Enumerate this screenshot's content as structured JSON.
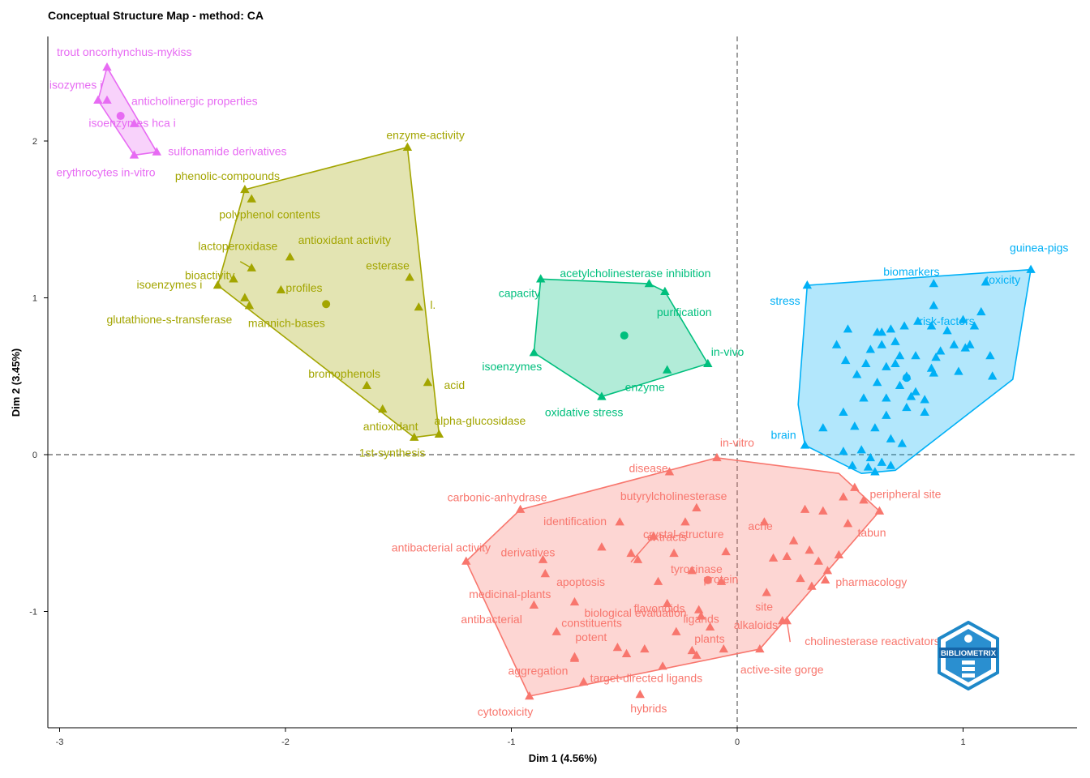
{
  "chart_data": {
    "type": "scatter",
    "title": "Conceptual Structure Map - method: CA",
    "xlabel": "Dim 1 (4.56%)",
    "ylabel": "Dim 2 (3.45%)",
    "xlim": [
      -3.05,
      1.5
    ],
    "ylim": [
      -1.75,
      2.65
    ],
    "xticks": [
      -3,
      -2,
      -1,
      0,
      1
    ],
    "yticks": [
      -1,
      0,
      1,
      2
    ],
    "reference_lines": {
      "x": 0,
      "y": 0,
      "style": "dashed"
    },
    "clusters": [
      {
        "name": "cluster-1",
        "color": "#F8766D",
        "fill": "#F8766D",
        "centroid": [
          -0.13,
          -0.8
        ],
        "hull": [
          [
            -0.09,
            -0.02
          ],
          [
            0.45,
            -0.12
          ],
          [
            0.63,
            -0.36
          ],
          [
            0.1,
            -1.24
          ],
          [
            -0.92,
            -1.54
          ],
          [
            -1.2,
            -0.68
          ],
          [
            -0.96,
            -0.35
          ]
        ],
        "labels": [
          {
            "text": "in-vitro",
            "x": -0.09,
            "y": -0.02
          },
          {
            "text": "disease",
            "x": -0.3,
            "y": -0.11
          },
          {
            "text": "carbonic-anhydrase",
            "x": -0.96,
            "y": -0.35
          },
          {
            "text": "butyrylcholinesterase",
            "x": -0.18,
            "y": -0.34
          },
          {
            "text": "identification",
            "x": -0.52,
            "y": -0.43
          },
          {
            "text": "crystal-structure",
            "x": -0.23,
            "y": -0.43
          },
          {
            "text": "ache",
            "x": 0.12,
            "y": -0.43
          },
          {
            "text": "tabun",
            "x": 0.49,
            "y": -0.44
          },
          {
            "text": "peripheral site",
            "x": 0.63,
            "y": -0.36
          },
          {
            "text": "extracts",
            "x": -0.37,
            "y": -0.52
          },
          {
            "text": "antibacterial activity",
            "x": -1.2,
            "y": -0.68
          },
          {
            "text": "derivatives",
            "x": -0.86,
            "y": -0.67
          },
          {
            "text": "tyrosinase",
            "x": -0.28,
            "y": -0.63
          },
          {
            "text": "pharmacology",
            "x": 0.45,
            "y": -0.64
          },
          {
            "text": "medicinal-plants",
            "x": -0.85,
            "y": -0.76
          },
          {
            "text": "apoptosis",
            "x": -0.47,
            "y": -0.63
          },
          {
            "text": "flavonoids",
            "x": -0.35,
            "y": -0.81
          },
          {
            "text": "protein",
            "x": -0.07,
            "y": -0.81
          },
          {
            "text": "site",
            "x": 0.13,
            "y": -0.88
          },
          {
            "text": "antibacterial",
            "x": -0.9,
            "y": -0.96
          },
          {
            "text": "biological evaluation",
            "x": -0.72,
            "y": -0.94
          },
          {
            "text": "ligands",
            "x": -0.16,
            "y": -1.03
          },
          {
            "text": "alkaloids",
            "x": 0.2,
            "y": -1.06
          },
          {
            "text": "constituents",
            "x": -0.8,
            "y": -1.13
          },
          {
            "text": "cholinesterase reactivators",
            "x": 0.22,
            "y": -1.06
          },
          {
            "text": "potent",
            "x": -0.53,
            "y": -1.23
          },
          {
            "text": "plants",
            "x": -0.06,
            "y": -1.24
          },
          {
            "text": "active-site gorge",
            "x": 0.1,
            "y": -1.24
          },
          {
            "text": "aggregation",
            "x": -0.72,
            "y": -1.3
          },
          {
            "text": "target-directed ligands",
            "x": -0.68,
            "y": -1.45
          },
          {
            "text": "cytotoxicity",
            "x": -0.92,
            "y": -1.54
          },
          {
            "text": "hybrids",
            "x": -0.43,
            "y": -1.53
          }
        ],
        "extra_points": [
          [
            -0.6,
            -0.59
          ],
          [
            -0.44,
            -0.67
          ],
          [
            -0.2,
            -0.74
          ],
          [
            -0.05,
            -0.62
          ],
          [
            0.16,
            -0.66
          ],
          [
            0.3,
            -0.35
          ],
          [
            0.38,
            -0.36
          ],
          [
            0.47,
            -0.27
          ],
          [
            0.52,
            -0.21
          ],
          [
            0.56,
            -0.29
          ],
          [
            0.25,
            -0.55
          ],
          [
            0.32,
            -0.61
          ],
          [
            0.36,
            -0.68
          ],
          [
            0.4,
            -0.74
          ],
          [
            -0.31,
            -0.95
          ],
          [
            -0.17,
            -0.99
          ],
          [
            -0.12,
            -1.1
          ],
          [
            -0.27,
            -1.13
          ],
          [
            -0.49,
            -1.27
          ],
          [
            -0.41,
            -1.24
          ],
          [
            -0.33,
            -1.35
          ],
          [
            -0.18,
            -1.28
          ],
          [
            -0.2,
            -1.25
          ],
          [
            -0.72,
            -1.29
          ],
          [
            0.33,
            -0.84
          ],
          [
            0.39,
            -0.8
          ],
          [
            0.22,
            -0.65
          ],
          [
            0.28,
            -0.79
          ]
        ]
      },
      {
        "name": "cluster-2",
        "color": "#A3A500",
        "fill": "#A3A500",
        "centroid": [
          -1.82,
          0.96
        ],
        "labels": [
          {
            "text": "enzyme-activity",
            "x": -1.46,
            "y": 1.96
          },
          {
            "text": "phenolic-compounds",
            "x": -2.18,
            "y": 1.69
          },
          {
            "text": "polyphenol contents",
            "x": -2.15,
            "y": 1.63
          },
          {
            "text": "lactoperoxidase",
            "x": -2.15,
            "y": 1.19
          },
          {
            "text": "antioxidant activity",
            "x": -1.98,
            "y": 1.26
          },
          {
            "text": "bioactivity",
            "x": -2.23,
            "y": 1.12
          },
          {
            "text": "profiles",
            "x": -2.02,
            "y": 1.05
          },
          {
            "text": "esterase",
            "x": -1.45,
            "y": 1.13
          },
          {
            "text": "isoenzymes i",
            "x": -2.3,
            "y": 1.08
          },
          {
            "text": "l.",
            "x": -1.41,
            "y": 0.94
          },
          {
            "text": "glutathione-s-transferase",
            "x": -2.16,
            "y": 0.95
          },
          {
            "text": "mannich-bases",
            "x": -2.18,
            "y": 1.0
          },
          {
            "text": "bromophenols",
            "x": -1.64,
            "y": 0.44
          },
          {
            "text": "acid",
            "x": -1.37,
            "y": 0.46
          },
          {
            "text": "antioxidant",
            "x": -1.57,
            "y": 0.29
          },
          {
            "text": "alpha-glucosidase",
            "x": -1.32,
            "y": 0.13
          },
          {
            "text": "1st-synthesis",
            "x": -1.43,
            "y": 0.11
          }
        ],
        "hull": [
          [
            -1.46,
            1.96
          ],
          [
            -1.32,
            0.13
          ],
          [
            -1.43,
            0.11
          ],
          [
            -2.3,
            1.08
          ],
          [
            -2.18,
            1.69
          ]
        ]
      },
      {
        "name": "cluster-3",
        "color": "#00BF7D",
        "fill": "#00BF7D",
        "centroid": [
          -0.5,
          0.76
        ],
        "labels": [
          {
            "text": "acetylcholinesterase inhibition",
            "x": -0.39,
            "y": 1.09
          },
          {
            "text": "capacity",
            "x": -0.87,
            "y": 1.12
          },
          {
            "text": "purification",
            "x": -0.32,
            "y": 1.04
          },
          {
            "text": "in-vivo",
            "x": -0.13,
            "y": 0.58
          },
          {
            "text": "isoenzymes",
            "x": -0.9,
            "y": 0.65
          },
          {
            "text": "enzyme",
            "x": -0.31,
            "y": 0.54
          },
          {
            "text": "oxidative stress",
            "x": -0.6,
            "y": 0.37
          }
        ],
        "hull": [
          [
            -0.87,
            1.12
          ],
          [
            -0.39,
            1.09
          ],
          [
            -0.32,
            1.04
          ],
          [
            -0.13,
            0.58
          ],
          [
            -0.6,
            0.37
          ],
          [
            -0.9,
            0.65
          ]
        ]
      },
      {
        "name": "cluster-4",
        "color": "#00B0F6",
        "fill": "#00B0F6",
        "centroid": [
          0.75,
          0.49
        ],
        "labels": [
          {
            "text": "guinea-pigs",
            "x": 1.3,
            "y": 1.18
          },
          {
            "text": "biomarkers",
            "x": 0.87,
            "y": 1.09
          },
          {
            "text": "toxicity",
            "x": 1.1,
            "y": 1.1
          },
          {
            "text": "stress",
            "x": 0.31,
            "y": 1.08
          },
          {
            "text": "risk-factors",
            "x": 0.87,
            "y": 0.95
          },
          {
            "text": "brain",
            "x": 0.3,
            "y": 0.06
          }
        ],
        "hull": [
          [
            0.31,
            1.08
          ],
          [
            1.3,
            1.18
          ],
          [
            1.22,
            0.48
          ],
          [
            0.7,
            -0.1
          ],
          [
            0.55,
            -0.12
          ],
          [
            0.3,
            0.06
          ],
          [
            0.27,
            0.32
          ]
        ],
        "extra_points": [
          [
            0.49,
            0.8
          ],
          [
            0.62,
            0.78
          ],
          [
            0.68,
            0.8
          ],
          [
            0.74,
            0.82
          ],
          [
            0.8,
            0.85
          ],
          [
            0.86,
            0.82
          ],
          [
            0.93,
            0.79
          ],
          [
            1.0,
            0.86
          ],
          [
            1.08,
            0.91
          ],
          [
            1.05,
            0.82
          ],
          [
            0.59,
            0.67
          ],
          [
            0.64,
            0.7
          ],
          [
            0.72,
            0.63
          ],
          [
            0.79,
            0.63
          ],
          [
            0.88,
            0.62
          ],
          [
            0.96,
            0.7
          ],
          [
            1.03,
            0.7
          ],
          [
            1.12,
            0.63
          ],
          [
            0.48,
            0.6
          ],
          [
            0.57,
            0.58
          ],
          [
            0.66,
            0.56
          ],
          [
            0.75,
            0.5
          ],
          [
            0.86,
            0.55
          ],
          [
            0.98,
            0.53
          ],
          [
            1.13,
            0.5
          ],
          [
            0.38,
            0.17
          ],
          [
            0.47,
            0.27
          ],
          [
            0.56,
            0.36
          ],
          [
            0.66,
            0.36
          ],
          [
            0.75,
            0.3
          ],
          [
            0.83,
            0.27
          ],
          [
            0.52,
            0.18
          ],
          [
            0.61,
            0.17
          ],
          [
            0.68,
            0.1
          ],
          [
            0.73,
            0.07
          ],
          [
            0.47,
            0.02
          ],
          [
            0.55,
            0.03
          ],
          [
            0.59,
            -0.02
          ],
          [
            0.64,
            -0.05
          ],
          [
            0.51,
            -0.07
          ],
          [
            0.58,
            -0.08
          ],
          [
            0.61,
            -0.11
          ],
          [
            0.68,
            -0.07
          ],
          [
            0.64,
            0.78
          ],
          [
            0.7,
            0.72
          ],
          [
            0.53,
            0.51
          ],
          [
            0.62,
            0.46
          ],
          [
            0.72,
            0.44
          ],
          [
            0.79,
            0.4
          ],
          [
            0.83,
            0.35
          ],
          [
            0.9,
            0.66
          ],
          [
            1.01,
            0.68
          ],
          [
            0.44,
            0.7
          ],
          [
            0.7,
            0.58
          ],
          [
            0.87,
            0.52
          ],
          [
            0.66,
            0.25
          ],
          [
            0.77,
            0.37
          ]
        ]
      },
      {
        "name": "cluster-5",
        "color": "#E76BF3",
        "fill": "#E76BF3",
        "centroid": [
          -2.73,
          2.16
        ],
        "labels": [
          {
            "text": "trout oncorhynchus-mykiss",
            "x": -2.79,
            "y": 2.47
          },
          {
            "text": "isozymes i",
            "x": -2.83,
            "y": 2.26
          },
          {
            "text": "anticholinergic properties",
            "x": -2.79,
            "y": 2.26
          },
          {
            "text": "isoenzymes hca i",
            "x": -2.67,
            "y": 2.11
          },
          {
            "text": "sulfonamide derivatives",
            "x": -2.57,
            "y": 1.93
          },
          {
            "text": "erythrocytes in-vitro",
            "x": -2.67,
            "y": 1.91
          }
        ],
        "hull": [
          [
            -2.79,
            2.47
          ],
          [
            -2.57,
            1.93
          ],
          [
            -2.67,
            1.91
          ],
          [
            -2.83,
            2.26
          ]
        ]
      }
    ]
  },
  "logo": {
    "text": "BIBLIOMETRIX",
    "color": "#1E88C8"
  }
}
